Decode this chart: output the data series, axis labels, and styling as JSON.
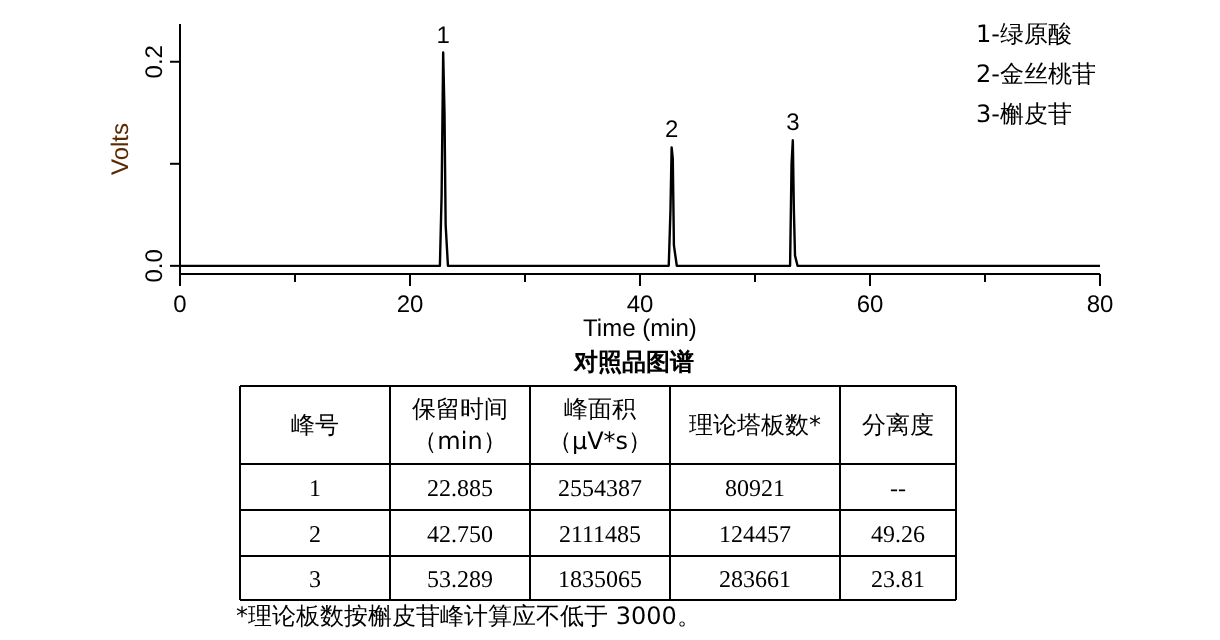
{
  "chart_data": [
    {
      "type": "line",
      "xlabel": "Time (min)",
      "ylabel": "Volts",
      "xlim": [
        0,
        80
      ],
      "ylim": [
        -0.008,
        0.237
      ],
      "xticks": [
        0,
        {
          "value": 10,
          "label": null
        },
        20,
        {
          "value": 30,
          "label": null
        },
        40,
        {
          "value": 50,
          "label": null
        },
        60,
        {
          "value": 70,
          "label": null
        },
        80
      ],
      "yticks": [
        {
          "value": 0,
          "label": "0.0"
        },
        {
          "value": 0.1,
          "label": null
        },
        0.2
      ],
      "series": [
        {
          "color": "#000000",
          "x": [
            0,
            22.6,
            22.75,
            22.885,
            23.0,
            23.1,
            23.3,
            42.5,
            42.65,
            42.75,
            42.85,
            42.95,
            43.2,
            53.05,
            53.18,
            53.289,
            53.38,
            53.48,
            53.7,
            80
          ],
          "values": [
            0,
            0,
            0.07,
            0.209,
            0.15,
            0.04,
            0,
            0,
            0.055,
            0.116,
            0.105,
            0.02,
            0,
            0,
            0.1,
            0.123,
            0.055,
            0.01,
            0,
            0
          ]
        }
      ],
      "marker": "none",
      "line_style": "solid",
      "grid": false,
      "annotations": [
        {
          "text": "1",
          "x": 22.885,
          "y": 0.209
        },
        {
          "text": "2",
          "x": 42.75,
          "y": 0.116
        },
        {
          "text": "3",
          "x": 53.289,
          "y": 0.123
        },
        "1-绿原酸",
        "2-金丝桃苷",
        "3-槲皮苷",
        "对照品图谱"
      ]
    },
    {
      "type": "other",
      "categories": [
        "峰号",
        "保留时间（min）",
        "峰面积（μV*s）",
        "理论塔板数*",
        "分离度"
      ],
      "cells": [
        [
          "1",
          "22.885",
          "2554387",
          "80921",
          "--"
        ],
        [
          "2",
          "42.750",
          "2111485",
          "124457",
          "49.26"
        ],
        [
          "3",
          "53.289",
          "1835065",
          "283661",
          "23.81"
        ]
      ],
      "annotations": [
        "*理论板数按槲皮苷峰计算应不低于 3000。"
      ]
    }
  ]
}
